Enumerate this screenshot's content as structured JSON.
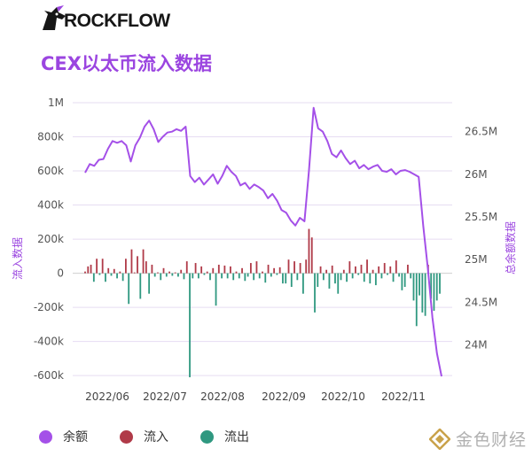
{
  "brand": {
    "name": "ROCKFLOW"
  },
  "watermark": {
    "text": "金色财经"
  },
  "chart_data": {
    "type": "bar",
    "title": "CEX以太币流入数据",
    "ylabel_left": "流入数据",
    "ylabel_right": "总余额数据",
    "left_ylim": [
      -620000,
      1000000
    ],
    "left_ticks": [
      "1M",
      "800k",
      "600k",
      "400k",
      "200k",
      "0",
      "-200k",
      "-400k",
      "-600k"
    ],
    "left_tick_values": [
      1000000,
      800000,
      600000,
      400000,
      200000,
      0,
      -200000,
      -400000,
      -600000
    ],
    "right_ylim": [
      23600000,
      26840000
    ],
    "right_ticks": [
      "26.5M",
      "26M",
      "25.5M",
      "25M",
      "24.5M",
      "24M"
    ],
    "right_tick_values": [
      26500000,
      26000000,
      25500000,
      25000000,
      24500000,
      24000000
    ],
    "x_ticks": [
      "2022/06",
      "2022/07",
      "2022/08",
      "2022/09",
      "2022/10",
      "2022/11"
    ],
    "grid": true,
    "legend_position": "bottom",
    "series": [
      {
        "name": "余额",
        "color": "#a450e8",
        "type": "line",
        "values": [
          26020000,
          26120000,
          26100000,
          26170000,
          26180000,
          26300000,
          26390000,
          26370000,
          26390000,
          26340000,
          26150000,
          26340000,
          26430000,
          26560000,
          26630000,
          26530000,
          26380000,
          26440000,
          26490000,
          26500000,
          26530000,
          26510000,
          26560000,
          25980000,
          25910000,
          25960000,
          25880000,
          25940000,
          26000000,
          25890000,
          25980000,
          26100000,
          26030000,
          25980000,
          25870000,
          25900000,
          25830000,
          25880000,
          25850000,
          25810000,
          25720000,
          25770000,
          25690000,
          25580000,
          25550000,
          25460000,
          25400000,
          25490000,
          25450000,
          26050000,
          26780000,
          26540000,
          26500000,
          26390000,
          26240000,
          26200000,
          26280000,
          26190000,
          26120000,
          26160000,
          26070000,
          26110000,
          26060000,
          26090000,
          26110000,
          26040000,
          26030000,
          26060000,
          26000000,
          26040000,
          26050000,
          26030000,
          26000000,
          25970000,
          25390000,
          24900000,
          24320000,
          23900000,
          23630000
        ]
      },
      {
        "name": "流入",
        "color": "#b03a48",
        "type": "bar"
      },
      {
        "name": "流出",
        "color": "#2f9880",
        "type": "bar"
      }
    ],
    "flows": [
      10000,
      40000,
      50000,
      -50000,
      85000,
      -10000,
      85000,
      -50000,
      30000,
      -15000,
      25000,
      -30000,
      10000,
      -45000,
      85000,
      -180000,
      140000,
      5000,
      100000,
      -150000,
      140000,
      70000,
      -120000,
      50000,
      -20000,
      5000,
      -40000,
      30000,
      -20000,
      10000,
      -15000,
      5000,
      -20000,
      20000,
      -35000,
      70000,
      -610000,
      -30000,
      60000,
      -30000,
      40000,
      -10000,
      10000,
      -40000,
      30000,
      -190000,
      50000,
      -30000,
      45000,
      -30000,
      40000,
      -40000,
      10000,
      -30000,
      30000,
      -45000,
      -20000,
      60000,
      -40000,
      70000,
      -30000,
      10000,
      -55000,
      50000,
      -20000,
      30000,
      -10000,
      35000,
      -60000,
      -60000,
      80000,
      -80000,
      70000,
      -40000,
      60000,
      -120000,
      80000,
      260000,
      210000,
      -230000,
      -80000,
      40000,
      -40000,
      20000,
      -90000,
      45000,
      -60000,
      -120000,
      -40000,
      20000,
      -50000,
      70000,
      -30000,
      40000,
      -10000,
      50000,
      -50000,
      80000,
      -60000,
      20000,
      -70000,
      40000,
      -30000,
      60000,
      -10000,
      40000,
      -50000,
      75000,
      -20000,
      -100000,
      -80000,
      50000,
      -30000,
      -160000,
      -310000,
      -130000,
      -230000,
      -250000,
      50000,
      -150000,
      -220000,
      -160000,
      -120000
    ]
  },
  "legend": [
    {
      "label": "余额",
      "color": "#a450e8"
    },
    {
      "label": "流入",
      "color": "#b03a48"
    },
    {
      "label": "流出",
      "color": "#2f9880"
    }
  ]
}
